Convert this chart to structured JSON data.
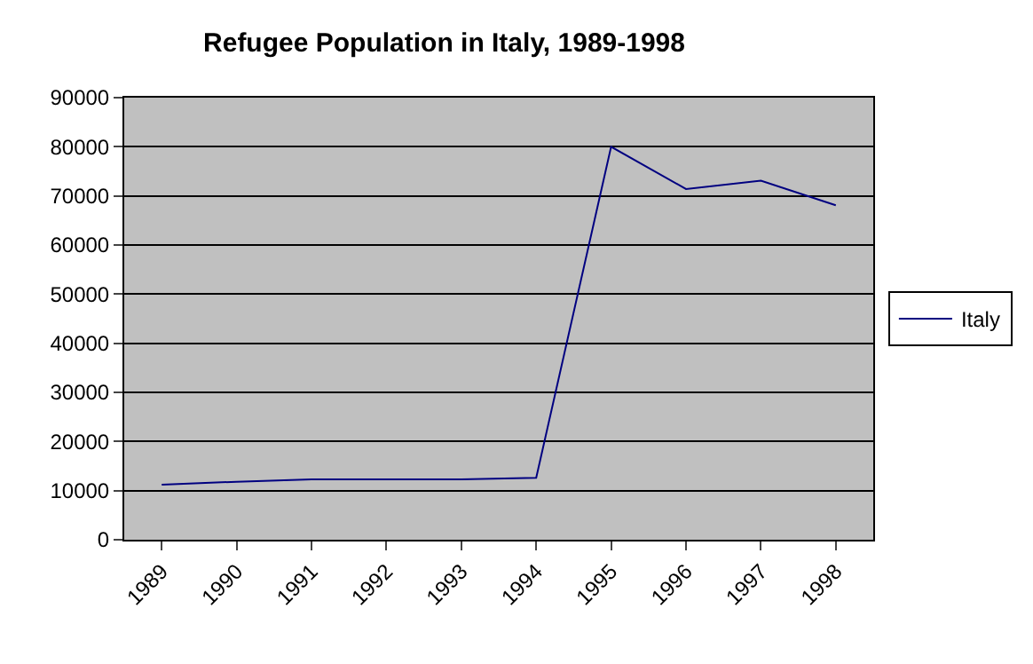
{
  "chart_data": {
    "type": "line",
    "title": "Refugee Population in Italy, 1989-1998",
    "categories": [
      "1989",
      "1990",
      "1991",
      "1992",
      "1993",
      "1994",
      "1995",
      "1996",
      "1997",
      "1998"
    ],
    "series": [
      {
        "name": "Italy",
        "color": "#000080",
        "values": [
          11200,
          11800,
          12300,
          12300,
          12300,
          12600,
          80000,
          71400,
          73100,
          68100
        ]
      }
    ],
    "ylim": [
      0,
      90000
    ],
    "yticks": [
      0,
      10000,
      20000,
      30000,
      40000,
      50000,
      60000,
      70000,
      80000,
      90000
    ],
    "grid": "y",
    "legend": "right",
    "marker": "none",
    "line_style": "solid"
  }
}
